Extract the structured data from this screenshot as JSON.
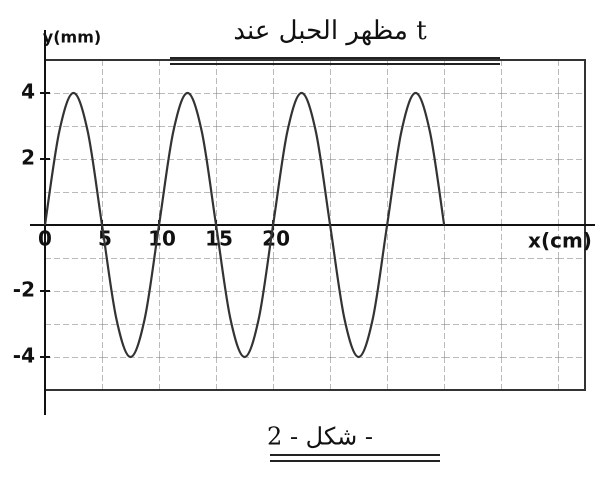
{
  "chart_data": {
    "type": "line",
    "title": "مظهر الحبل عند t",
    "caption": "شكل - 2 -",
    "x_label": "x(cm)",
    "y_label": "y(mm)",
    "x": [
      0,
      1.25,
      2.5,
      3.75,
      5,
      6.25,
      7.5,
      8.75,
      10,
      11.25,
      12.5,
      13.75,
      15,
      16.25,
      17.5,
      18.75,
      20,
      21.25,
      22.5,
      23.75,
      25,
      26.25,
      27.5,
      28.75,
      30,
      31.25,
      32.5,
      33.75,
      35
    ],
    "series": [
      {
        "color": "#333333",
        "values": [
          0,
          2.83,
          4,
          2.83,
          0,
          -2.83,
          -4,
          -2.83,
          0,
          2.83,
          4,
          2.83,
          0,
          -2.83,
          -4,
          -2.83,
          0,
          2.83,
          4,
          2.83,
          0,
          -2.83,
          -4,
          -2.83,
          0,
          2.83,
          4,
          2.83,
          0
        ]
      }
    ],
    "xlim": [
      0,
      47
    ],
    "ylim": [
      -5,
      5
    ],
    "xticks": [
      0,
      5,
      10,
      15,
      20
    ],
    "yticks": [
      4,
      2,
      0,
      -2,
      -4
    ]
  }
}
